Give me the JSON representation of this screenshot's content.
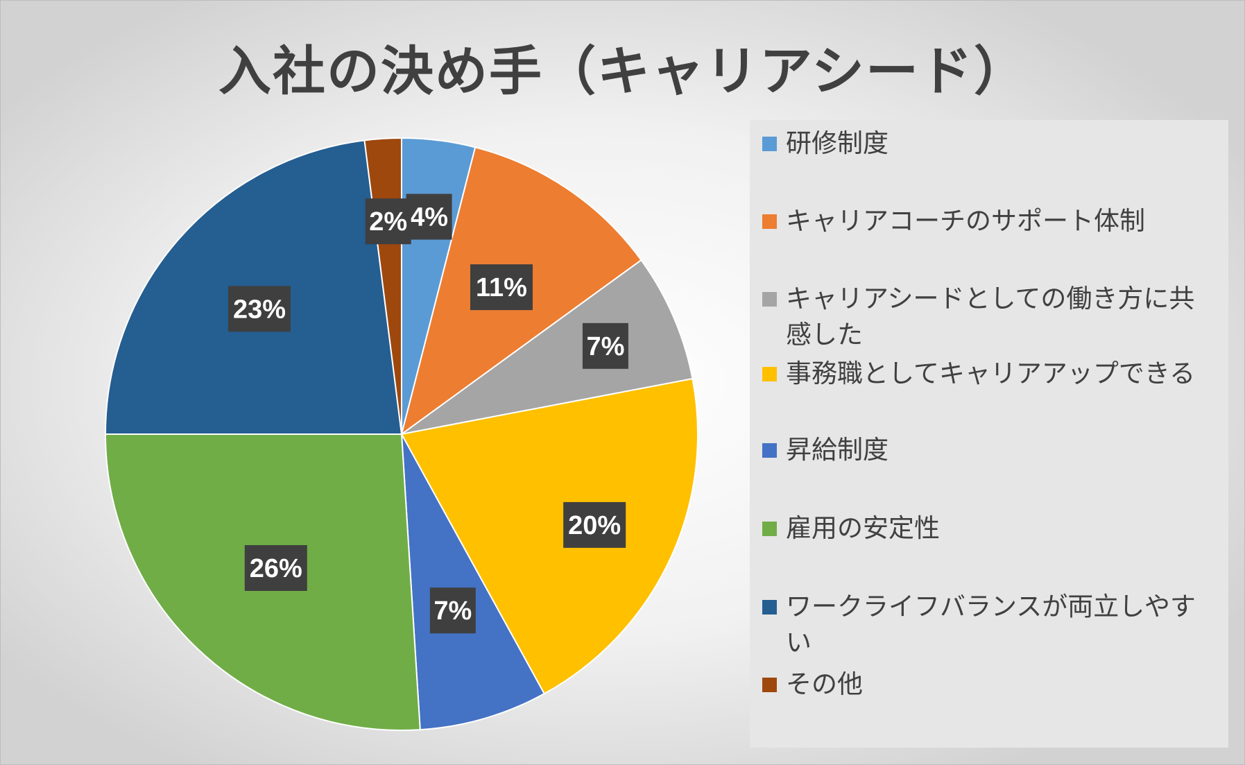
{
  "chart_data": {
    "type": "pie",
    "title": "入社の決め手（キャリアシード）",
    "categories": [
      "研修制度",
      "キャリアコーチのサポート体制",
      "キャリアシードとしての働き方に共感した",
      "事務職としてキャリアアップできる",
      "昇給制度",
      "雇用の安定性",
      "ワークライフバランスが両立しやすい",
      "その他"
    ],
    "values": [
      4,
      11,
      7,
      20,
      7,
      26,
      23,
      2
    ],
    "value_labels": [
      "4%",
      "11%",
      "7%",
      "20%",
      "7%",
      "26%",
      "23%",
      "2%"
    ],
    "colors": [
      "#5b9bd5",
      "#ed7d31",
      "#a5a5a5",
      "#ffc000",
      "#4472c4",
      "#70ad47",
      "#255e91",
      "#9e480e"
    ],
    "start_angle_deg": 0,
    "direction": "clockwise",
    "legend_position": "right"
  }
}
